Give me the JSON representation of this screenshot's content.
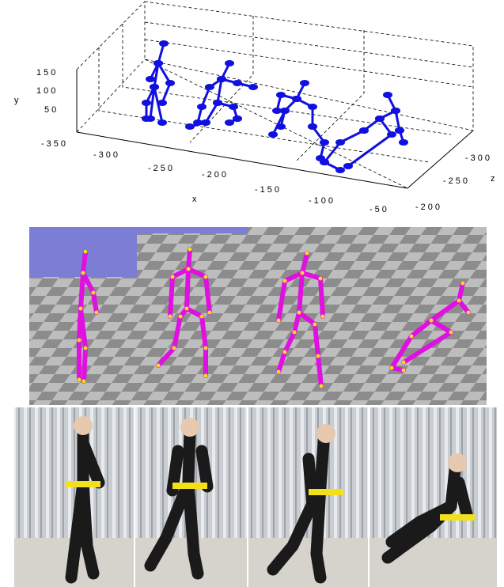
{
  "plot": {
    "y_label": "y",
    "x_label": "x",
    "z_label": "z",
    "y_ticks": [
      150,
      100,
      50
    ],
    "x_ticks": [
      -350,
      -300,
      -250,
      -200,
      -150,
      -100,
      -50
    ],
    "z_ticks": [
      -300,
      -250,
      -200
    ]
  }
}
